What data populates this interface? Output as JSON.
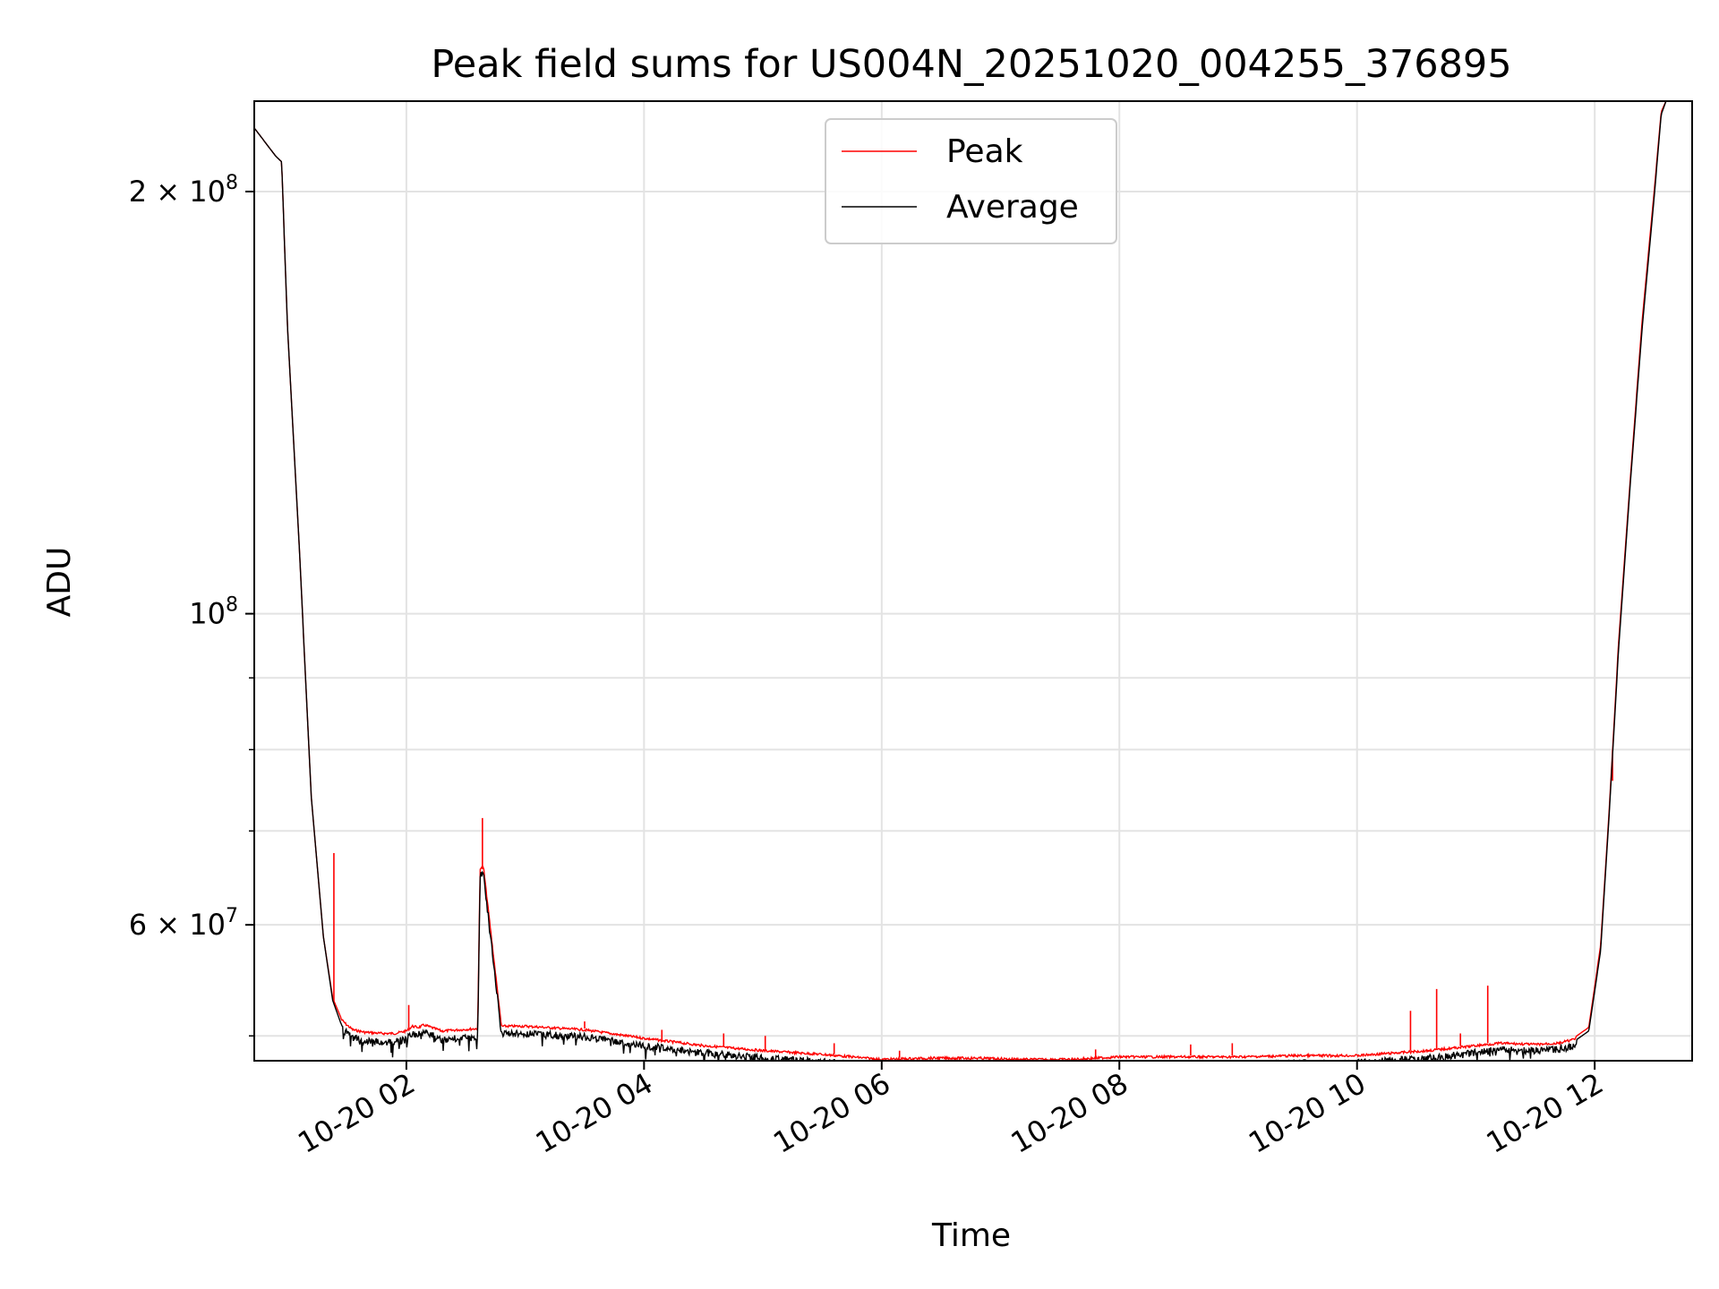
{
  "chart_data": {
    "type": "line",
    "title": "Peak field sums for US004N_20251020_004255_376895",
    "xlabel": "Time",
    "ylabel": "ADU",
    "yscale": "log",
    "ylim": [
      48000000,
      232000000
    ],
    "xlim_hours": [
      0.72,
      12.82
    ],
    "grid": true,
    "legend_position": "top-center",
    "x_ticks": [
      {
        "value": 2,
        "label": "10-20 02"
      },
      {
        "value": 4,
        "label": "10-20 04"
      },
      {
        "value": 6,
        "label": "10-20 06"
      },
      {
        "value": 8,
        "label": "10-20 08"
      },
      {
        "value": 10,
        "label": "10-20 10"
      },
      {
        "value": 12,
        "label": "10-20 12"
      }
    ],
    "y_major_ticks": [
      {
        "value": 60000000,
        "base": "6 × 10",
        "exp": "7"
      },
      {
        "value": 100000000,
        "base": "10",
        "exp": "8"
      },
      {
        "value": 200000000,
        "base": "2 × 10",
        "exp": "8"
      }
    ],
    "y_minor_ticks": [
      50000000,
      70000000,
      80000000,
      90000000
    ],
    "series": [
      {
        "name": "Peak",
        "color": "#ff0000",
        "x_hours": [
          0.72,
          0.9,
          0.95,
          1.0,
          1.1,
          1.2,
          1.3,
          1.38,
          1.45,
          1.5,
          1.55,
          1.65,
          1.8,
          1.9,
          2.0,
          2.05,
          2.1,
          2.15,
          2.3,
          2.45,
          2.6,
          2.62,
          2.65,
          2.8,
          3.0,
          3.5,
          4.0,
          4.5,
          5.0,
          5.5,
          6.0,
          6.4,
          6.8,
          7.2,
          7.6,
          8.0,
          8.5,
          9.0,
          9.5,
          10.0,
          10.3,
          10.6,
          10.9,
          11.2,
          11.5,
          11.7,
          11.82,
          11.95,
          12.05,
          12.12,
          12.2,
          12.3,
          12.4,
          12.5,
          12.56,
          12.6
        ],
        "y": [
          222000000,
          212000000,
          210000000,
          160000000,
          111000000,
          74000000,
          59000000,
          53200000,
          51500000,
          51000000,
          50600000,
          50400000,
          50300000,
          50300000,
          50500000,
          50900000,
          50800000,
          51000000,
          50500000,
          50600000,
          50700000,
          66000000,
          66000000,
          50900000,
          50900000,
          50600000,
          49900000,
          49300000,
          48900000,
          48600000,
          48200000,
          48300000,
          48300000,
          48200000,
          48200000,
          48400000,
          48400000,
          48400000,
          48500000,
          48500000,
          48700000,
          48900000,
          49200000,
          49500000,
          49400000,
          49500000,
          49800000,
          50700000,
          58000000,
          72000000,
          95000000,
          125000000,
          162000000,
          200000000,
          228000000,
          232000000
        ],
        "spikes": [
          {
            "x_hours": 1.39,
            "y": 67500000
          },
          {
            "x_hours": 2.02,
            "y": 52600000
          },
          {
            "x_hours": 2.64,
            "y": 71500000
          },
          {
            "x_hours": 3.5,
            "y": 51200000
          },
          {
            "x_hours": 4.15,
            "y": 50500000
          },
          {
            "x_hours": 4.67,
            "y": 50200000
          },
          {
            "x_hours": 5.02,
            "y": 50000000
          },
          {
            "x_hours": 5.6,
            "y": 49400000
          },
          {
            "x_hours": 6.15,
            "y": 48800000
          },
          {
            "x_hours": 7.8,
            "y": 48900000
          },
          {
            "x_hours": 8.6,
            "y": 49300000
          },
          {
            "x_hours": 8.95,
            "y": 49400000
          },
          {
            "x_hours": 10.45,
            "y": 52100000
          },
          {
            "x_hours": 10.67,
            "y": 54000000
          },
          {
            "x_hours": 10.87,
            "y": 50200000
          },
          {
            "x_hours": 11.1,
            "y": 54300000
          },
          {
            "x_hours": 12.15,
            "y": 76000000
          }
        ]
      },
      {
        "name": "Average",
        "color": "#000000",
        "x_hours": [
          0.72,
          0.9,
          0.95,
          1.0,
          1.1,
          1.2,
          1.3,
          1.38,
          1.45,
          1.5,
          1.55,
          1.65,
          1.8,
          1.9,
          2.0,
          2.05,
          2.1,
          2.15,
          2.3,
          2.45,
          2.6,
          2.62,
          2.65,
          2.8,
          3.0,
          3.5,
          4.0,
          4.5,
          5.0,
          5.5,
          6.0,
          6.4,
          6.8,
          7.2,
          7.6,
          8.0,
          8.5,
          9.0,
          9.5,
          10.0,
          10.3,
          10.6,
          10.9,
          11.2,
          11.5,
          11.7,
          11.82,
          11.95,
          12.05,
          12.12,
          12.2,
          12.3,
          12.4,
          12.5,
          12.56,
          12.6
        ],
        "y": [
          222000000,
          212000000,
          210000000,
          160000000,
          111000000,
          74000000,
          59000000,
          53000000,
          51000000,
          50500000,
          50100000,
          49900000,
          49800000,
          49800000,
          50000000,
          50500000,
          50400000,
          50600000,
          50000000,
          50100000,
          50200000,
          65500000,
          65500000,
          50500000,
          50500000,
          50200000,
          49500000,
          48900000,
          48500000,
          48200000,
          47800000,
          47900000,
          47900000,
          47800000,
          47800000,
          48000000,
          48000000,
          48000000,
          48100000,
          48100000,
          48300000,
          48500000,
          48800000,
          49200000,
          49100000,
          49200000,
          49500000,
          50400000,
          57500000,
          71500000,
          94000000,
          124000000,
          160000000,
          198000000,
          227000000,
          232000000
        ]
      }
    ]
  }
}
